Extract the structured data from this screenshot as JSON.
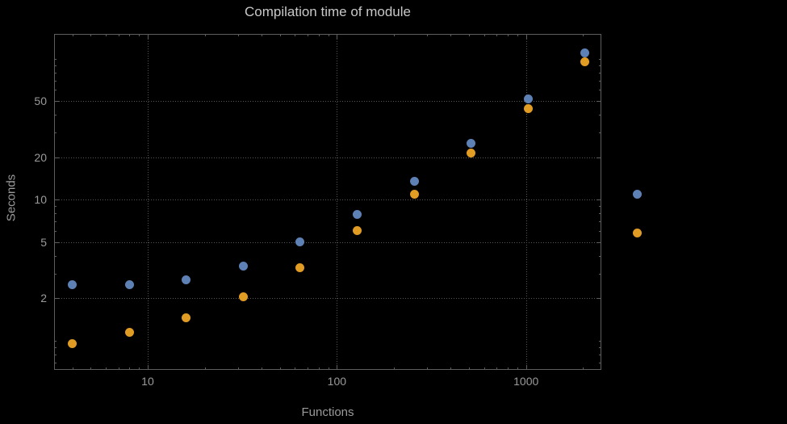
{
  "chart_data": {
    "type": "scatter",
    "title": "Compilation time of module",
    "xlabel": "Functions",
    "ylabel": "Seconds",
    "x_scale": "log",
    "y_scale": "log",
    "xlim": [
      3.2,
      2500
    ],
    "ylim": [
      0.62,
      150
    ],
    "grid": true,
    "legend_position": "right-outside",
    "x": [
      4,
      8,
      16,
      32,
      64,
      128,
      256,
      512,
      1024,
      2048
    ],
    "series": [
      {
        "id": "series-1",
        "color": "#5e81b5",
        "values": [
          2.5,
          2.5,
          2.7,
          3.4,
          5.0,
          7.9,
          13.5,
          25,
          52,
          110
        ]
      },
      {
        "id": "series-2",
        "color": "#e19c24",
        "values": [
          0.95,
          1.15,
          1.45,
          2.05,
          3.3,
          6.0,
          11,
          21.5,
          44,
          95
        ]
      }
    ],
    "x_ticks": [
      {
        "v": 10,
        "label": "10"
      },
      {
        "v": 100,
        "label": "100"
      },
      {
        "v": 1000,
        "label": "1000"
      }
    ],
    "y_ticks": [
      {
        "v": 2,
        "label": "2"
      },
      {
        "v": 5,
        "label": "5"
      },
      {
        "v": 10,
        "label": "10"
      },
      {
        "v": 20,
        "label": "20"
      },
      {
        "v": 50,
        "label": "50"
      }
    ],
    "legend_markers": [
      "#5e81b5",
      "#e19c24"
    ]
  },
  "colors": {
    "background": "#000000",
    "frame": "#5e5e5e",
    "grid": "#585858",
    "title_text": "#c8c8c8",
    "axis_text": "#9a9a9a"
  }
}
